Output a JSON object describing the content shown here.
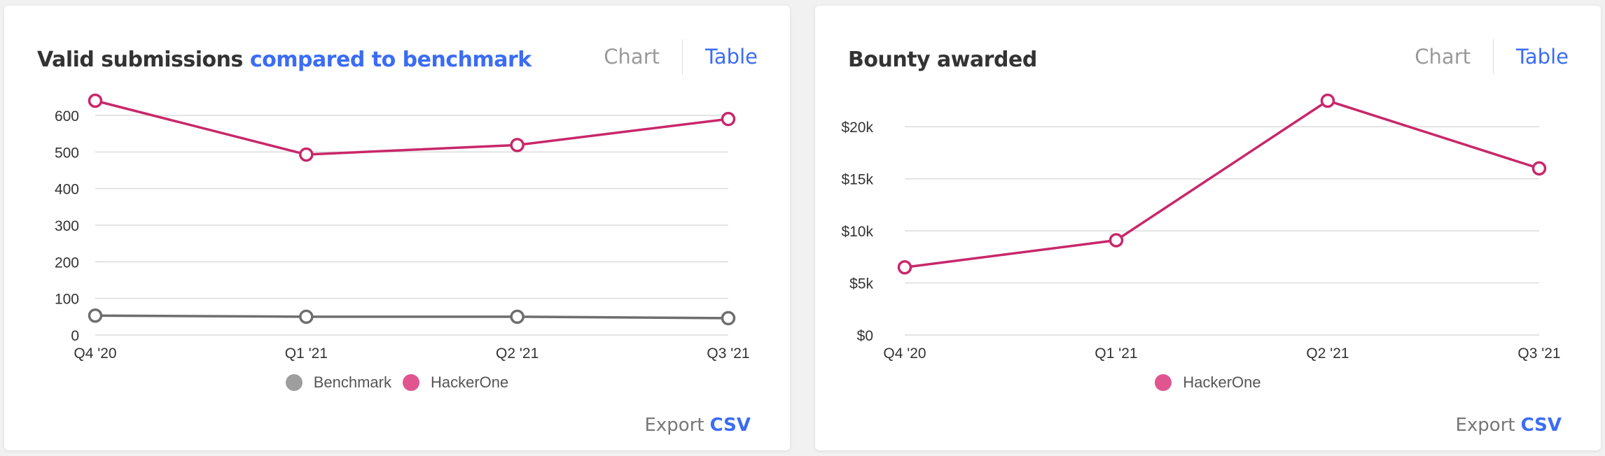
{
  "charts": [
    {
      "title_main": "Valid submissions",
      "title_accent": "compared to benchmark",
      "toggle": {
        "chart": "Chart",
        "table": "Table"
      },
      "export": {
        "label": "Export",
        "link": "CSV"
      },
      "legend": [
        {
          "label": "Benchmark",
          "color": "#9e9e9e"
        },
        {
          "label": "HackerOne",
          "color": "#e0548f"
        }
      ]
    },
    {
      "title_main": "Bounty awarded",
      "title_accent": "",
      "toggle": {
        "chart": "Chart",
        "table": "Table"
      },
      "export": {
        "label": "Export",
        "link": "CSV"
      },
      "legend": [
        {
          "label": "HackerOne",
          "color": "#e0548f"
        }
      ]
    }
  ],
  "chart_data": [
    {
      "type": "line",
      "title": "Valid submissions compared to benchmark",
      "categories": [
        "Q4 '20",
        "Q1 '21",
        "Q2 '21",
        "Q3 '21"
      ],
      "series": [
        {
          "name": "Benchmark",
          "values": [
            53,
            50,
            50,
            46
          ],
          "color": "#6e6e6e"
        },
        {
          "name": "HackerOne",
          "values": [
            640,
            493,
            519,
            590
          ],
          "color": "#c8276a"
        }
      ],
      "ylim": [
        0,
        640
      ],
      "yticks": [
        0,
        100,
        200,
        300,
        400,
        500,
        600
      ],
      "ytick_labels": [
        "0",
        "100",
        "200",
        "300",
        "400",
        "500",
        "600"
      ],
      "grid": true,
      "legend_position": "bottom"
    },
    {
      "type": "line",
      "title": "Bounty awarded",
      "categories": [
        "Q4 '20",
        "Q1 '21",
        "Q2 '21",
        "Q3 '21"
      ],
      "series": [
        {
          "name": "HackerOne",
          "values": [
            6500,
            9100,
            22500,
            16000
          ],
          "color": "#c8276a"
        }
      ],
      "ylim": [
        0,
        22500
      ],
      "yticks": [
        0,
        5000,
        10000,
        15000,
        20000
      ],
      "ytick_labels": [
        "$0",
        "$5k",
        "$10k",
        "$15k",
        "$20k"
      ],
      "grid": true,
      "legend_position": "bottom"
    }
  ]
}
